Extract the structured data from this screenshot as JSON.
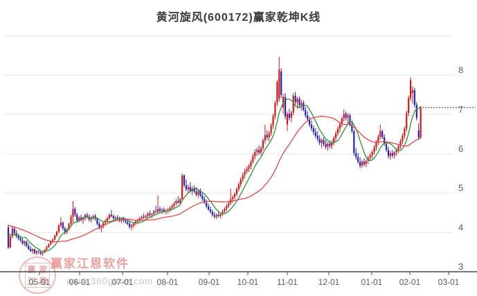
{
  "title": "黄河旋风(600172)赢家乾坤K线",
  "watermark": {
    "brand": "赢家江恩软件",
    "site": "www.360gann.com",
    "seal_chars": [
      "赢",
      "家",
      "江",
      "恩"
    ]
  },
  "colors": {
    "up_candle": "#d91414",
    "down_candle": "#2323b8",
    "fast_ma": "#2f8f3a",
    "slow_ma": "#e04848",
    "grid": "#e7e7e7",
    "axis": "#4a4a4a",
    "tick_label": "#5a5a5a",
    "last_price_line": "#333333"
  },
  "chart_data": {
    "type": "candlestick",
    "title": "黄河旋风(600172)赢家乾坤K线",
    "x_tick_labels": [
      "05-01",
      "06-01",
      "07-01",
      "08-01",
      "09-01",
      "10-01",
      "11-01",
      "12-01",
      "01-01",
      "02-01",
      "03-01"
    ],
    "y_tick_labels": [
      "8",
      "7",
      "6",
      "5",
      "4",
      "3"
    ],
    "ylim": [
      3,
      9
    ],
    "grid": "horizontal",
    "legend": "none",
    "last_price_line": {
      "value": 7.18,
      "style": "dotted"
    },
    "ma_lines": [
      {
        "name": "fast-ma",
        "period": 8,
        "color": "#2f8f3a"
      },
      {
        "name": "slow-ma",
        "period": 30,
        "color": "#e04848"
      }
    ],
    "ma_warmup_closes": [
      4.45,
      4.43,
      4.42,
      4.4,
      4.38,
      4.37,
      4.35,
      4.33,
      4.32,
      4.3,
      4.28,
      4.27,
      4.25,
      4.23,
      4.22,
      4.2,
      4.18,
      4.17,
      4.15,
      4.13,
      4.12,
      4.1,
      4.08,
      4.07,
      4.05,
      4.03,
      4.02,
      4.0,
      3.98,
      3.97
    ],
    "candles": [
      [
        4.13,
        4.2,
        3.58,
        3.62
      ],
      [
        3.62,
        3.95,
        3.6,
        3.9
      ],
      [
        3.9,
        4.18,
        3.85,
        4.1
      ],
      [
        4.1,
        4.15,
        3.92,
        3.98
      ],
      [
        3.98,
        4.06,
        3.86,
        3.91
      ],
      [
        3.91,
        3.97,
        3.8,
        3.85
      ],
      [
        3.85,
        3.92,
        3.76,
        3.8
      ],
      [
        3.8,
        3.85,
        3.68,
        3.72
      ],
      [
        3.72,
        3.8,
        3.65,
        3.77
      ],
      [
        3.77,
        3.79,
        3.62,
        3.66
      ],
      [
        3.66,
        3.72,
        3.55,
        3.58
      ],
      [
        3.58,
        3.65,
        3.5,
        3.53
      ],
      [
        3.53,
        3.6,
        3.46,
        3.57
      ],
      [
        3.57,
        3.59,
        3.44,
        3.48
      ],
      [
        3.48,
        3.55,
        3.42,
        3.52
      ],
      [
        3.52,
        3.56,
        3.45,
        3.5
      ],
      [
        3.5,
        3.53,
        3.42,
        3.46
      ],
      [
        3.46,
        3.52,
        3.4,
        3.49
      ],
      [
        3.49,
        3.58,
        3.47,
        3.56
      ],
      [
        3.56,
        3.66,
        3.54,
        3.63
      ],
      [
        3.63,
        3.72,
        3.6,
        3.7
      ],
      [
        3.7,
        3.8,
        3.67,
        3.78
      ],
      [
        3.78,
        3.85,
        3.72,
        3.82
      ],
      [
        3.82,
        3.95,
        3.8,
        3.92
      ],
      [
        3.92,
        4.05,
        3.88,
        4.02
      ],
      [
        4.02,
        4.22,
        3.98,
        4.18
      ],
      [
        4.18,
        4.39,
        4.12,
        4.25
      ],
      [
        4.25,
        4.28,
        4.05,
        4.1
      ],
      [
        4.1,
        4.15,
        3.95,
        4.0
      ],
      [
        4.0,
        4.12,
        3.96,
        4.08
      ],
      [
        4.08,
        4.25,
        4.05,
        4.22
      ],
      [
        4.22,
        4.45,
        4.18,
        4.4
      ],
      [
        4.4,
        4.8,
        4.25,
        4.6
      ],
      [
        4.6,
        4.65,
        4.4,
        4.45
      ],
      [
        4.45,
        4.5,
        4.25,
        4.3
      ],
      [
        4.3,
        4.42,
        4.26,
        4.38
      ],
      [
        4.38,
        4.45,
        4.28,
        4.32
      ],
      [
        4.32,
        4.4,
        4.22,
        4.36
      ],
      [
        4.36,
        4.48,
        4.3,
        4.44
      ],
      [
        4.44,
        4.5,
        4.35,
        4.4
      ],
      [
        4.4,
        4.46,
        4.28,
        4.33
      ],
      [
        4.33,
        4.42,
        4.25,
        4.38
      ],
      [
        4.38,
        4.45,
        4.32,
        4.42
      ],
      [
        4.42,
        4.47,
        4.3,
        4.35
      ],
      [
        4.35,
        4.38,
        4.18,
        4.22
      ],
      [
        4.22,
        4.28,
        4.08,
        4.12
      ],
      [
        4.12,
        4.2,
        4.0,
        4.16
      ],
      [
        4.16,
        4.26,
        4.1,
        4.24
      ],
      [
        4.24,
        4.34,
        4.18,
        4.3
      ],
      [
        4.3,
        4.4,
        4.25,
        4.37
      ],
      [
        4.37,
        4.48,
        4.32,
        4.45
      ],
      [
        4.45,
        4.57,
        4.38,
        4.42
      ],
      [
        4.42,
        4.46,
        4.32,
        4.36
      ],
      [
        4.36,
        4.42,
        4.28,
        4.38
      ],
      [
        4.38,
        4.44,
        4.3,
        4.34
      ],
      [
        4.34,
        4.4,
        4.26,
        4.3
      ],
      [
        4.3,
        4.38,
        4.24,
        4.35
      ],
      [
        4.35,
        4.4,
        4.26,
        4.31
      ],
      [
        4.31,
        4.36,
        4.22,
        4.27
      ],
      [
        4.27,
        4.33,
        4.18,
        4.22
      ],
      [
        4.22,
        4.28,
        4.1,
        4.14
      ],
      [
        4.14,
        4.22,
        4.06,
        4.18
      ],
      [
        4.18,
        4.26,
        4.12,
        4.23
      ],
      [
        4.23,
        4.32,
        4.18,
        4.28
      ],
      [
        4.28,
        4.35,
        4.22,
        4.32
      ],
      [
        4.32,
        4.4,
        4.27,
        4.36
      ],
      [
        4.36,
        4.44,
        4.3,
        4.4
      ],
      [
        4.4,
        4.48,
        4.34,
        4.38
      ],
      [
        4.38,
        4.45,
        4.32,
        4.42
      ],
      [
        4.42,
        4.52,
        4.36,
        4.48
      ],
      [
        4.48,
        4.56,
        4.4,
        4.44
      ],
      [
        4.44,
        4.5,
        4.36,
        4.47
      ],
      [
        4.47,
        4.58,
        4.42,
        4.54
      ],
      [
        4.54,
        4.68,
        4.48,
        4.52
      ],
      [
        4.52,
        4.94,
        4.48,
        4.6
      ],
      [
        4.6,
        4.66,
        4.5,
        4.55
      ],
      [
        4.55,
        4.62,
        4.46,
        4.58
      ],
      [
        4.58,
        4.64,
        4.5,
        4.54
      ],
      [
        4.54,
        4.6,
        4.46,
        4.56
      ],
      [
        4.56,
        4.62,
        4.48,
        4.58
      ],
      [
        4.58,
        4.66,
        4.52,
        4.63
      ],
      [
        4.63,
        4.72,
        4.56,
        4.68
      ],
      [
        4.68,
        4.78,
        4.6,
        4.74
      ],
      [
        4.74,
        4.85,
        4.68,
        4.8
      ],
      [
        4.8,
        4.92,
        4.72,
        4.76
      ],
      [
        4.76,
        4.88,
        4.7,
        4.85
      ],
      [
        4.85,
        5.5,
        4.82,
        5.45
      ],
      [
        5.45,
        5.48,
        5.15,
        5.2
      ],
      [
        5.2,
        5.35,
        5.05,
        5.1
      ],
      [
        5.1,
        5.22,
        5.0,
        5.15
      ],
      [
        5.15,
        5.28,
        5.02,
        5.05
      ],
      [
        5.05,
        5.18,
        4.95,
        5.12
      ],
      [
        5.12,
        5.2,
        5.0,
        5.04
      ],
      [
        5.04,
        5.15,
        4.92,
        4.96
      ],
      [
        4.96,
        5.1,
        4.88,
        5.06
      ],
      [
        5.06,
        5.12,
        4.9,
        4.94
      ],
      [
        4.94,
        5.0,
        4.8,
        4.85
      ],
      [
        4.85,
        4.92,
        4.72,
        4.76
      ],
      [
        4.76,
        4.84,
        4.62,
        4.66
      ],
      [
        4.66,
        4.74,
        4.55,
        4.58
      ],
      [
        4.58,
        4.66,
        4.48,
        4.52
      ],
      [
        4.52,
        4.58,
        4.4,
        4.44
      ],
      [
        4.44,
        4.52,
        4.35,
        4.4
      ],
      [
        4.4,
        4.48,
        4.34,
        4.45
      ],
      [
        4.45,
        4.55,
        4.38,
        4.42
      ],
      [
        4.42,
        4.5,
        4.36,
        4.47
      ],
      [
        4.47,
        4.58,
        4.42,
        4.54
      ],
      [
        4.54,
        4.64,
        4.48,
        4.6
      ],
      [
        4.6,
        4.72,
        4.54,
        4.68
      ],
      [
        4.68,
        4.8,
        4.62,
        4.75
      ],
      [
        4.75,
        5.12,
        4.7,
        4.85
      ],
      [
        4.85,
        4.95,
        4.76,
        4.9
      ],
      [
        4.9,
        5.02,
        4.84,
        4.98
      ],
      [
        4.98,
        5.15,
        4.92,
        5.1
      ],
      [
        5.1,
        5.28,
        5.04,
        5.22
      ],
      [
        5.22,
        5.4,
        5.15,
        5.35
      ],
      [
        5.35,
        5.52,
        5.28,
        5.46
      ],
      [
        5.46,
        5.62,
        5.38,
        5.56
      ],
      [
        5.56,
        5.68,
        5.5,
        5.62
      ],
      [
        5.62,
        5.74,
        5.54,
        5.68
      ],
      [
        5.68,
        5.86,
        5.6,
        5.8
      ],
      [
        5.8,
        6.0,
        5.74,
        5.94
      ],
      [
        5.94,
        6.12,
        5.86,
        6.05
      ],
      [
        6.05,
        6.16,
        5.95,
        6.1
      ],
      [
        6.1,
        6.22,
        5.98,
        6.03
      ],
      [
        6.03,
        6.2,
        5.96,
        6.15
      ],
      [
        6.15,
        6.4,
        6.08,
        6.34
      ],
      [
        6.34,
        6.74,
        6.26,
        6.48
      ],
      [
        6.48,
        6.6,
        6.35,
        6.42
      ],
      [
        6.42,
        6.58,
        6.32,
        6.53
      ],
      [
        6.53,
        6.78,
        6.46,
        6.72
      ],
      [
        6.72,
        7.02,
        6.64,
        6.96
      ],
      [
        6.96,
        7.35,
        6.88,
        7.3
      ],
      [
        7.3,
        7.88,
        7.22,
        7.83
      ],
      [
        7.41,
        8.47,
        7.33,
        8.15
      ],
      [
        8.1,
        8.18,
        7.42,
        7.5
      ],
      [
        7.18,
        7.52,
        7.02,
        7.45
      ],
      [
        7.45,
        7.55,
        6.88,
        6.95
      ],
      [
        6.75,
        7.08,
        6.58,
        7.02
      ],
      [
        7.02,
        7.15,
        6.85,
        6.92
      ],
      [
        6.92,
        7.1,
        6.8,
        7.05
      ],
      [
        7.05,
        7.55,
        6.98,
        7.48
      ],
      [
        7.48,
        7.58,
        7.25,
        7.32
      ],
      [
        7.32,
        7.45,
        7.15,
        7.4
      ],
      [
        7.4,
        7.46,
        7.18,
        7.24
      ],
      [
        7.24,
        7.38,
        7.1,
        7.3
      ],
      [
        7.3,
        7.36,
        7.08,
        7.12
      ],
      [
        7.12,
        7.2,
        6.92,
        6.98
      ],
      [
        6.98,
        7.08,
        6.82,
        6.88
      ],
      [
        6.88,
        6.95,
        6.68,
        6.74
      ],
      [
        6.74,
        6.85,
        6.58,
        6.65
      ],
      [
        6.65,
        6.72,
        6.48,
        6.55
      ],
      [
        6.55,
        6.66,
        6.4,
        6.46
      ],
      [
        6.46,
        6.58,
        6.32,
        6.38
      ],
      [
        6.38,
        6.48,
        6.22,
        6.28
      ],
      [
        6.28,
        6.4,
        6.15,
        6.35
      ],
      [
        6.35,
        6.42,
        6.2,
        6.25
      ],
      [
        6.25,
        6.36,
        6.12,
        6.18
      ],
      [
        6.18,
        6.3,
        6.08,
        6.26
      ],
      [
        6.26,
        6.34,
        6.14,
        6.2
      ],
      [
        6.2,
        6.35,
        6.12,
        6.3
      ],
      [
        6.3,
        6.45,
        6.22,
        6.4
      ],
      [
        6.4,
        6.58,
        6.32,
        6.52
      ],
      [
        6.52,
        6.7,
        6.45,
        6.64
      ],
      [
        6.64,
        6.82,
        6.55,
        6.76
      ],
      [
        6.76,
        6.95,
        6.68,
        6.9
      ],
      [
        6.9,
        7.13,
        6.82,
        7.02
      ],
      [
        7.02,
        7.08,
        6.85,
        6.92
      ],
      [
        6.92,
        7.04,
        6.78,
        6.98
      ],
      [
        6.98,
        7.02,
        6.7,
        6.76
      ],
      [
        6.76,
        6.85,
        6.52,
        6.58
      ],
      [
        6.58,
        6.62,
        5.95,
        6.02
      ],
      [
        6.02,
        6.15,
        5.85,
        5.92
      ],
      [
        5.92,
        6.02,
        5.75,
        5.8
      ],
      [
        5.8,
        5.92,
        5.63,
        5.7
      ],
      [
        5.7,
        5.85,
        5.65,
        5.8
      ],
      [
        5.8,
        5.88,
        5.68,
        5.74
      ],
      [
        5.74,
        5.86,
        5.66,
        5.82
      ],
      [
        5.82,
        5.95,
        5.74,
        5.9
      ],
      [
        5.9,
        6.02,
        5.82,
        5.96
      ],
      [
        5.96,
        6.1,
        5.88,
        6.05
      ],
      [
        6.05,
        6.22,
        5.98,
        6.16
      ],
      [
        6.16,
        6.35,
        6.08,
        6.3
      ],
      [
        6.3,
        6.5,
        6.22,
        6.44
      ],
      [
        6.44,
        6.74,
        6.36,
        6.58
      ],
      [
        6.58,
        6.62,
        6.38,
        6.42
      ],
      [
        6.42,
        6.5,
        6.2,
        6.25
      ],
      [
        6.25,
        6.32,
        6.05,
        6.1
      ],
      [
        6.1,
        6.18,
        5.88,
        5.95
      ],
      [
        5.95,
        6.08,
        5.85,
        6.02
      ],
      [
        6.02,
        6.1,
        5.9,
        5.96
      ],
      [
        5.96,
        6.08,
        5.88,
        6.04
      ],
      [
        6.04,
        6.15,
        5.95,
        6.1
      ],
      [
        6.1,
        6.25,
        6.02,
        6.2
      ],
      [
        6.2,
        6.38,
        6.12,
        6.32
      ],
      [
        6.32,
        6.52,
        6.25,
        6.46
      ],
      [
        6.46,
        6.7,
        6.38,
        6.64
      ],
      [
        6.64,
        7.1,
        6.56,
        7.04
      ],
      [
        7.04,
        7.48,
        6.96,
        7.42
      ],
      [
        7.42,
        7.95,
        7.35,
        7.88
      ],
      [
        7.55,
        7.72,
        7.28,
        7.62
      ],
      [
        7.62,
        7.68,
        7.18,
        7.25
      ],
      [
        7.25,
        7.32,
        6.85,
        6.92
      ],
      [
        6.6,
        6.78,
        6.35,
        6.42
      ],
      [
        6.42,
        7.22,
        6.38,
        7.18
      ]
    ]
  }
}
